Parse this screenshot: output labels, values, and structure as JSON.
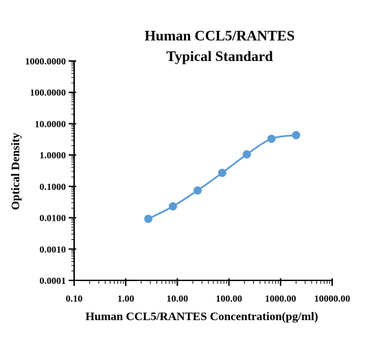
{
  "chart_data": {
    "type": "line",
    "title": "Human CCL5/RANTES",
    "subtitle": "Typical Standard",
    "xlabel": "Human CCL5/RANTES Concentration(pg/ml)",
    "ylabel": "Optical Density",
    "x_scale": "log",
    "y_scale": "log",
    "xlim": [
      0.1,
      10000
    ],
    "ylim": [
      0.0001,
      1000
    ],
    "x_tick_labels": [
      "0.10",
      "1.00",
      "10.00",
      "100.00",
      "1000.00",
      "10000.00"
    ],
    "y_tick_labels": [
      "0.0001",
      "0.0010",
      "0.0100",
      "0.1000",
      "1.0000",
      "10.0000",
      "100.0000",
      "1000.0000"
    ],
    "grid": false,
    "legend": "none",
    "series": [
      {
        "x": [
          2.74,
          8.2,
          24.7,
          74.1,
          222,
          667,
          2000
        ],
        "y": [
          0.0092,
          0.023,
          0.074,
          0.27,
          1.05,
          3.3,
          4.3
        ],
        "color": "#5b9bd5",
        "marker": "circle",
        "curve": "smooth"
      }
    ]
  }
}
